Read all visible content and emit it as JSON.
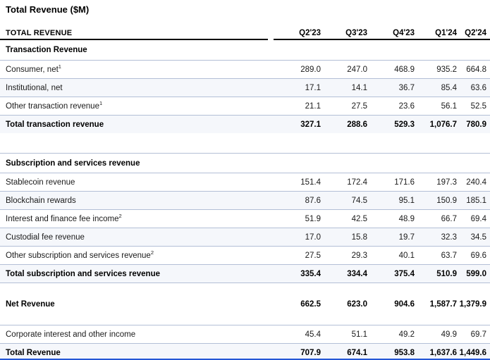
{
  "title": "Total Revenue ($M)",
  "table": {
    "header": {
      "label": "TOTAL REVENUE",
      "columns": [
        "Q2'23",
        "Q3'23",
        "Q4'23",
        "Q1'24",
        "Q2'24"
      ]
    },
    "rows": [
      {
        "type": "section",
        "label": "Transaction Revenue"
      },
      {
        "type": "data",
        "label": "Consumer, net",
        "sup": "1",
        "values": [
          "289.0",
          "247.0",
          "468.9",
          "935.2",
          "664.8"
        ]
      },
      {
        "type": "data",
        "label": "Institutional, net",
        "values": [
          "17.1",
          "14.1",
          "36.7",
          "85.4",
          "63.6"
        ]
      },
      {
        "type": "data",
        "label": "Other transaction revenue",
        "sup": "1",
        "values": [
          "21.1",
          "27.5",
          "23.6",
          "56.1",
          "52.5"
        ]
      },
      {
        "type": "total",
        "label": "Total transaction revenue",
        "values": [
          "327.1",
          "288.6",
          "529.3",
          "1,076.7",
          "780.9"
        ]
      },
      {
        "type": "spacer"
      },
      {
        "type": "section",
        "label": "Subscription and services revenue"
      },
      {
        "type": "data",
        "label": "Stablecoin revenue",
        "values": [
          "151.4",
          "172.4",
          "171.6",
          "197.3",
          "240.4"
        ]
      },
      {
        "type": "data",
        "label": "Blockchain rewards",
        "values": [
          "87.6",
          "74.5",
          "95.1",
          "150.9",
          "185.1"
        ]
      },
      {
        "type": "data",
        "label": "Interest and finance fee income",
        "sup": "2",
        "values": [
          "51.9",
          "42.5",
          "48.9",
          "66.7",
          "69.4"
        ]
      },
      {
        "type": "data",
        "label": "Custodial fee revenue",
        "values": [
          "17.0",
          "15.8",
          "19.7",
          "32.3",
          "34.5"
        ]
      },
      {
        "type": "data",
        "label": "Other subscription and services revenue",
        "sup": "2",
        "values": [
          "27.5",
          "29.3",
          "40.1",
          "63.7",
          "69.6"
        ]
      },
      {
        "type": "total",
        "label": "Total subscription and services revenue",
        "values": [
          "335.4",
          "334.4",
          "375.4",
          "510.9",
          "599.0"
        ]
      },
      {
        "type": "net",
        "label": "Net Revenue",
        "values": [
          "662.5",
          "623.0",
          "904.6",
          "1,587.7",
          "1,379.9"
        ]
      },
      {
        "type": "data",
        "label": "Corporate interest and other income",
        "values": [
          "45.4",
          "51.1",
          "49.2",
          "49.9",
          "69.7"
        ]
      },
      {
        "type": "grand",
        "label": "Total Revenue",
        "values": [
          "707.9",
          "674.1",
          "953.8",
          "1,637.6",
          "1,449.6"
        ]
      }
    ]
  },
  "colors": {
    "separator": "#b3bfd6",
    "header_rule": "#000000",
    "bottom_rule": "#2456d6",
    "stripe": "#f5f7fb",
    "text": "#1a1a1a",
    "text_bold": "#000000"
  }
}
